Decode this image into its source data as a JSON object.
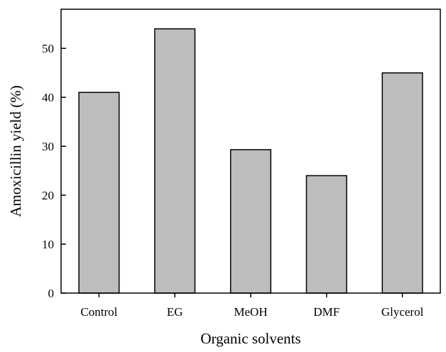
{
  "chart_data": {
    "type": "bar",
    "title": "",
    "xlabel": "Organic solvents",
    "ylabel": "Amoxicillin yield (%)",
    "categories": [
      "Control",
      "EG",
      "MeOH",
      "DMF",
      "Glycerol"
    ],
    "values": [
      41,
      54,
      29.3,
      24,
      45
    ],
    "ylim": [
      0,
      58
    ],
    "yticks": [
      0,
      10,
      20,
      30,
      40,
      50
    ],
    "ytick_labels": [
      "0",
      "10",
      "20",
      "30",
      "40",
      "50"
    ],
    "grid": false,
    "legend": "none",
    "colors": {
      "bar_fill": "#bdbdbd",
      "bar_stroke": "#000000",
      "axis": "#000000",
      "background": "#ffffff"
    }
  }
}
